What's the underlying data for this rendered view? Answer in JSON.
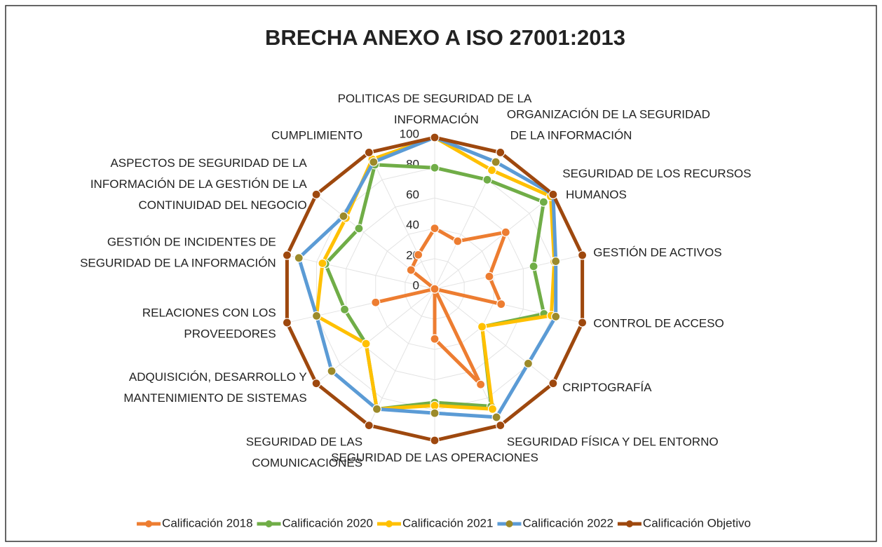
{
  "chart_data": {
    "type": "radar",
    "title": "BRECHA ANEXO A ISO 27001:2013",
    "categories": [
      "POLITICAS DE SEGURIDAD DE LA INFORMACIÓN",
      "ORGANIZACIÓN DE LA SEGURIDAD DE LA INFORMACIÓN",
      "SEGURIDAD DE LOS RECURSOS HUMANOS",
      "GESTIÓN DE ACTIVOS",
      "CONTROL DE ACCESO",
      "CRIPTOGRAFÍA",
      "SEGURIDAD FÍSICA Y DEL ENTORNO",
      "SEGURIDAD DE LAS OPERACIONES",
      "SEGURIDAD DE LAS COMUNICACIONES",
      "ADQUISICIÓN, DESARROLLO Y MANTENIMIENTO DE SISTEMAS",
      "RELACIONES CON LOS PROVEEDORES",
      "GESTIÓN DE INCIDENTES DE SEGURIDAD DE LA INFORMACIÓN",
      "ASPECTOS DE SEGURIDAD DE LA INFORMACIÓN DE LA GESTIÓN DE LA CONTINUIDAD DEL NEGOCIO",
      "CUMPLIMIENTO"
    ],
    "series": [
      {
        "name": "Calificación 2018",
        "color": "#ed7d31",
        "marker_color": "#ed7d31",
        "values": [
          40,
          35,
          60,
          37,
          45,
          0,
          70,
          33,
          0,
          0,
          40,
          0,
          20,
          25
        ]
      },
      {
        "name": "Calificación 2020",
        "color": "#70ad47",
        "marker_color": "#70ad47",
        "values": [
          80,
          80,
          92,
          67,
          74,
          40,
          86,
          75,
          88,
          58,
          61,
          74,
          64,
          91
        ]
      },
      {
        "name": "Calificación 2021",
        "color": "#ffc000",
        "marker_color": "#ffc000",
        "values": [
          100,
          87,
          98,
          81,
          79,
          40,
          88,
          77,
          88,
          58,
          80,
          76,
          75,
          95
        ]
      },
      {
        "name": "Calificación 2022",
        "color": "#5b9bd5",
        "marker_color": "#9c8a2a",
        "values": [
          100,
          93,
          100,
          82,
          82,
          79,
          94,
          82,
          88,
          87,
          80,
          92,
          77,
          93
        ]
      },
      {
        "name": "Calificación Objetivo",
        "color": "#9e480e",
        "marker_color": "#9e480e",
        "values": [
          100,
          100,
          100,
          100,
          100,
          100,
          100,
          100,
          100,
          100,
          100,
          100,
          100,
          100
        ]
      }
    ],
    "ylim": [
      0,
      100
    ],
    "yticks": [
      0,
      20,
      40,
      60,
      80,
      100
    ],
    "grid": true,
    "legend": "bottom"
  }
}
